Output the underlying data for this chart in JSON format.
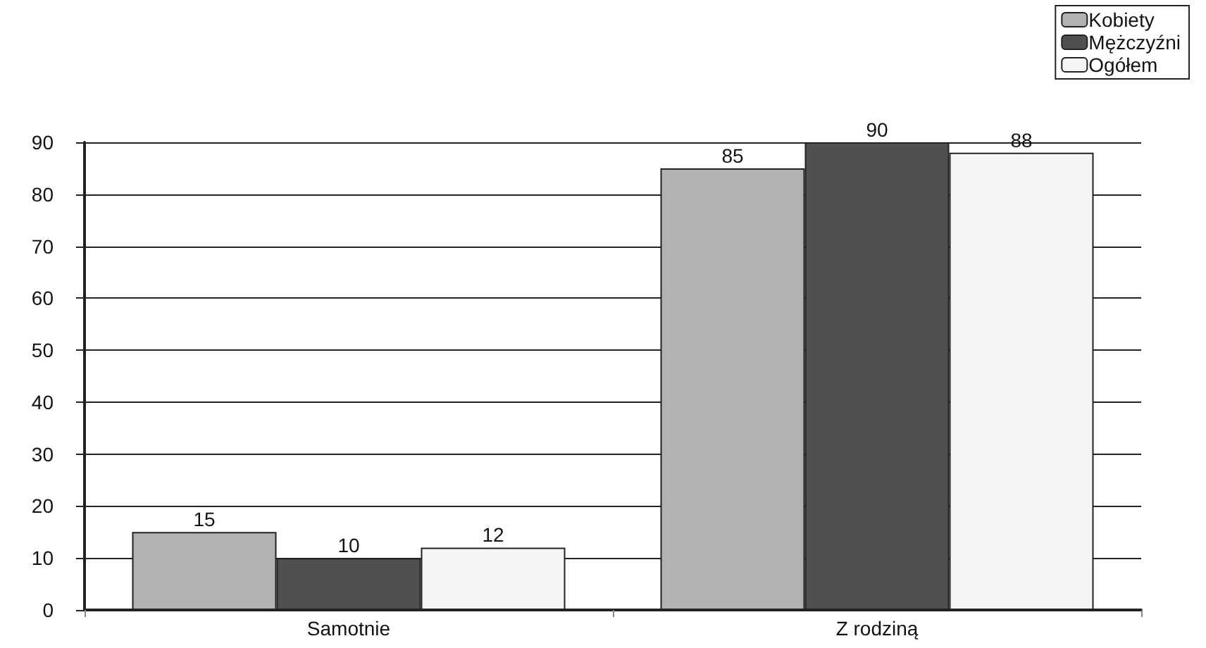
{
  "chart_data": {
    "type": "bar",
    "categories": [
      "Samotnie",
      "Z rodziną"
    ],
    "series": [
      {
        "name": "Kobiety",
        "color": "#b1b2b4",
        "values": [
          15,
          85
        ]
      },
      {
        "name": "Mężczyźni",
        "color": "#505052",
        "values": [
          10,
          90
        ]
      },
      {
        "name": "Ogółem",
        "color": "#f5f5f5",
        "values": [
          12,
          88
        ]
      }
    ],
    "ylim": [
      0,
      90
    ],
    "yticks": [
      0,
      10,
      20,
      30,
      40,
      50,
      60,
      70,
      80,
      90
    ],
    "grid": "y",
    "legend": "top right",
    "data_labels": true
  }
}
